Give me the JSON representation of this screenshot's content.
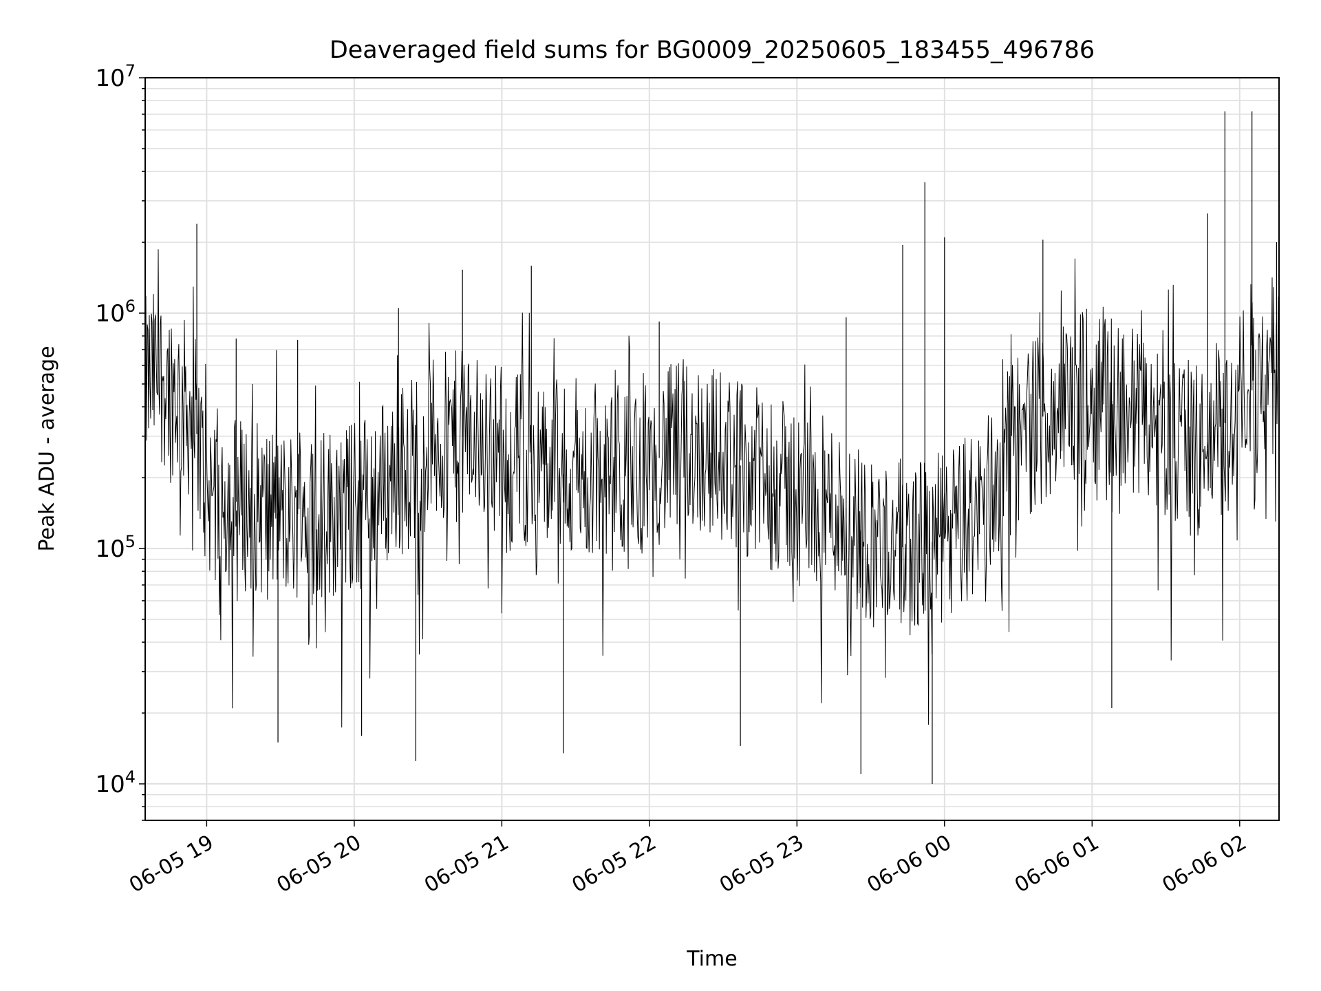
{
  "chart_data": {
    "type": "line",
    "title": "Deaveraged field sums for BG0009_20250605_183455_496786",
    "xlabel": "Time",
    "ylabel": "Peak ADU - average",
    "yscale": "log",
    "ylim": [
      7000,
      10000000
    ],
    "xlim": [
      "2025-06-05 18:35",
      "2025-06-06 02:16"
    ],
    "grid": true,
    "line_color": "#000000",
    "grid_color": "#e0e0e0",
    "x_ticks": [
      {
        "value": "2025-06-05 19:00",
        "label": "06-05 19"
      },
      {
        "value": "2025-06-05 20:00",
        "label": "06-05 20"
      },
      {
        "value": "2025-06-05 21:00",
        "label": "06-05 21"
      },
      {
        "value": "2025-06-05 22:00",
        "label": "06-05 22"
      },
      {
        "value": "2025-06-05 23:00",
        "label": "06-05 23"
      },
      {
        "value": "2025-06-06 00:00",
        "label": "06-06 00"
      },
      {
        "value": "2025-06-06 01:00",
        "label": "06-06 01"
      },
      {
        "value": "2025-06-06 02:00",
        "label": "06-06 02"
      }
    ],
    "y_ticks": [
      {
        "value": 10000,
        "base": "10",
        "exp": "4"
      },
      {
        "value": 100000,
        "base": "10",
        "exp": "5"
      },
      {
        "value": 1000000,
        "base": "10",
        "exp": "6"
      },
      {
        "value": 10000000,
        "base": "10",
        "exp": "7"
      }
    ],
    "series": [
      {
        "x": [
          "2025-06-05 18:35",
          "2025-06-05 18:40",
          "2025-06-05 18:45",
          "2025-06-05 18:50",
          "2025-06-05 18:55",
          "2025-06-05 19:00",
          "2025-06-05 19:10",
          "2025-06-05 19:20",
          "2025-06-05 19:30",
          "2025-06-05 19:45",
          "2025-06-05 20:00",
          "2025-06-05 20:15",
          "2025-06-05 20:30",
          "2025-06-05 20:45",
          "2025-06-05 21:00",
          "2025-06-05 21:15",
          "2025-06-05 21:30",
          "2025-06-05 21:45",
          "2025-06-05 22:00",
          "2025-06-05 22:15",
          "2025-06-05 22:30",
          "2025-06-05 22:45",
          "2025-06-05 23:00",
          "2025-06-05 23:15",
          "2025-06-05 23:30",
          "2025-06-05 23:45",
          "2025-06-06 00:00",
          "2025-06-06 00:15",
          "2025-06-06 00:30",
          "2025-06-06 00:45",
          "2025-06-06 01:00",
          "2025-06-06 01:15",
          "2025-06-06 01:30",
          "2025-06-06 01:45",
          "2025-06-06 02:00",
          "2025-06-06 02:16"
        ],
        "y": [
          500000,
          550000,
          500000,
          420000,
          350000,
          180000,
          160000,
          150000,
          140000,
          140000,
          150000,
          200000,
          280000,
          300000,
          270000,
          220000,
          200000,
          190000,
          230000,
          280000,
          250000,
          200000,
          170000,
          150000,
          110000,
          100000,
          110000,
          150000,
          300000,
          400000,
          450000,
          400000,
          300000,
          250000,
          420000,
          600000
        ]
      }
    ],
    "spikes": [
      {
        "x": "2025-06-05 18:56",
        "y": 2400000
      },
      {
        "x": "2025-06-05 19:12",
        "y": 780000
      },
      {
        "x": "2025-06-05 19:37",
        "y": 770000
      },
      {
        "x": "2025-06-05 19:29",
        "y": 15000
      },
      {
        "x": "2025-06-05 20:03",
        "y": 16000
      },
      {
        "x": "2025-06-05 20:18",
        "y": 1050000
      },
      {
        "x": "2025-06-05 20:25",
        "y": 12500
      },
      {
        "x": "2025-06-05 20:44",
        "y": 1530000
      },
      {
        "x": "2025-06-05 21:12",
        "y": 1590000
      },
      {
        "x": "2025-06-05 21:25",
        "y": 13500
      },
      {
        "x": "2025-06-05 22:04",
        "y": 920000
      },
      {
        "x": "2025-06-05 22:37",
        "y": 14500
      },
      {
        "x": "2025-06-05 23:20",
        "y": 960000
      },
      {
        "x": "2025-06-05 23:26",
        "y": 11000
      },
      {
        "x": "2025-06-05 23:43",
        "y": 1950000
      },
      {
        "x": "2025-06-05 23:52",
        "y": 3600000
      },
      {
        "x": "2025-06-05 23:55",
        "y": 10000
      },
      {
        "x": "2025-06-06 00:00",
        "y": 2100000
      },
      {
        "x": "2025-06-06 00:40",
        "y": 2050000
      },
      {
        "x": "2025-06-06 01:08",
        "y": 21000
      },
      {
        "x": "2025-06-06 01:47",
        "y": 2650000
      },
      {
        "x": "2025-06-06 01:54",
        "y": 7200000
      },
      {
        "x": "2025-06-06 02:05",
        "y": 7200000
      },
      {
        "x": "2025-06-06 02:15",
        "y": 2000000
      }
    ]
  }
}
